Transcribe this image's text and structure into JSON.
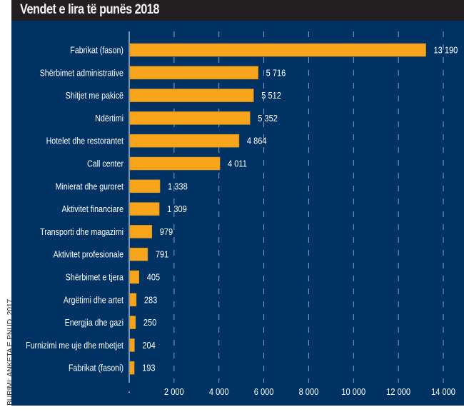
{
  "header": {
    "title": "Vendet e lira të punës 2018"
  },
  "source": "BURIMI: ANKETA E PNUD, 2017",
  "colors": {
    "bar": "#f8a51c",
    "background": "#003263",
    "header": "#231f20",
    "text": "#ffffff",
    "gridline": "#8ea3bf"
  },
  "chart_data": {
    "type": "bar",
    "orientation": "horizontal",
    "title": "Vendet e lira të punës 2018",
    "xlabel": "",
    "ylabel": "",
    "xlim": [
      0,
      14000
    ],
    "grid": "vertical dashed",
    "legend": "none",
    "categories": [
      "Fabrikat (fason)",
      "Shërbimet administrative",
      "Shitjet me pakicë",
      "Ndërtimi",
      "Hotelet dhe restorantet",
      "Call center",
      "Minierat dhe guroret",
      "Aktivitet financiare",
      "Transporti dhe magazimi",
      "Aktivitet profesionale",
      "Shërbimet e tjera",
      "Argëtimi dhe artet",
      "Energjia dhe gazi",
      "Furnizimi me uje dhe mbetjet",
      "Fabrikat (fasoni)"
    ],
    "values": [
      13190,
      5716,
      5512,
      5352,
      4864,
      4011,
      1338,
      1309,
      979,
      791,
      405,
      283,
      250,
      204,
      193
    ],
    "value_labels": [
      "13 190",
      "5 716",
      "5 512",
      "5 352",
      "4 864",
      "4 011",
      "1 338",
      "1 309",
      "979",
      "791",
      "405",
      "283",
      "250",
      "204",
      "193"
    ],
    "x_ticks": [
      0,
      2000,
      4000,
      6000,
      8000,
      10000,
      12000,
      14000
    ],
    "x_tick_labels": [
      "-",
      "2 000",
      "4 000",
      "6 000",
      "8 000",
      "10 000",
      "12 000",
      "14 000"
    ]
  }
}
